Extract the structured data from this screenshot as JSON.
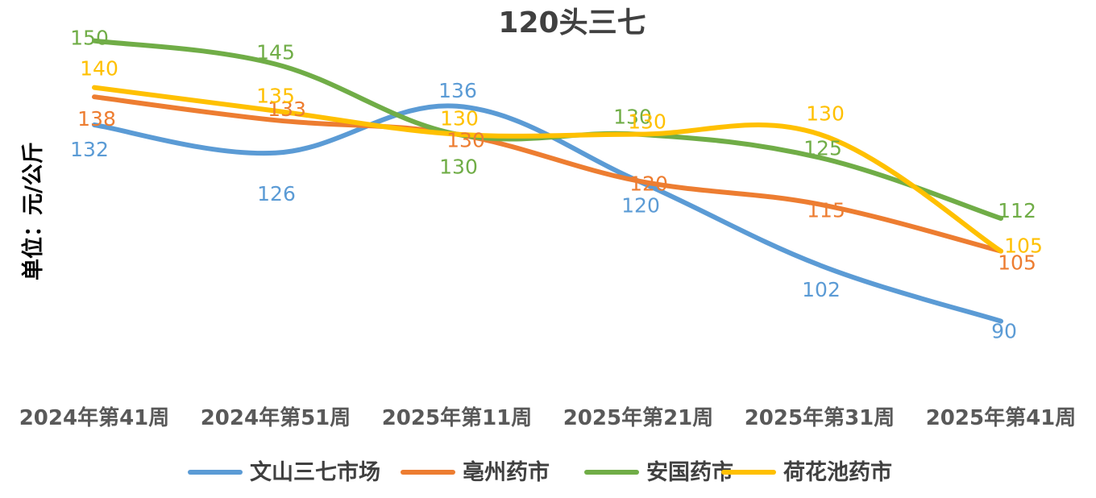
{
  "chart_data": {
    "type": "line",
    "title": "120头三七",
    "ylabel": "单位：元/公斤",
    "xlabel": "",
    "categories": [
      "2024年第41周",
      "2024年第51周",
      "2025年第11周",
      "2025年第21周",
      "2025年第31周",
      "2025年第41周"
    ],
    "series": [
      {
        "name": "文山三七市场",
        "color": "#5B9BD5",
        "values": [
          132,
          126,
          136,
          120,
          102,
          90
        ]
      },
      {
        "name": "亳州药市",
        "color": "#ED7D31",
        "values": [
          138,
          133,
          130,
          120,
          115,
          105
        ]
      },
      {
        "name": "安国药市",
        "color": "#70AD47",
        "values": [
          150,
          145,
          130,
          130,
          125,
          112
        ]
      },
      {
        "name": "荷花池药市",
        "color": "#FFC000",
        "values": [
          140,
          135,
          130,
          130,
          130,
          105
        ]
      }
    ],
    "legend_position": "bottom",
    "grid": false,
    "yaxis_visible": false,
    "smooth": true
  }
}
